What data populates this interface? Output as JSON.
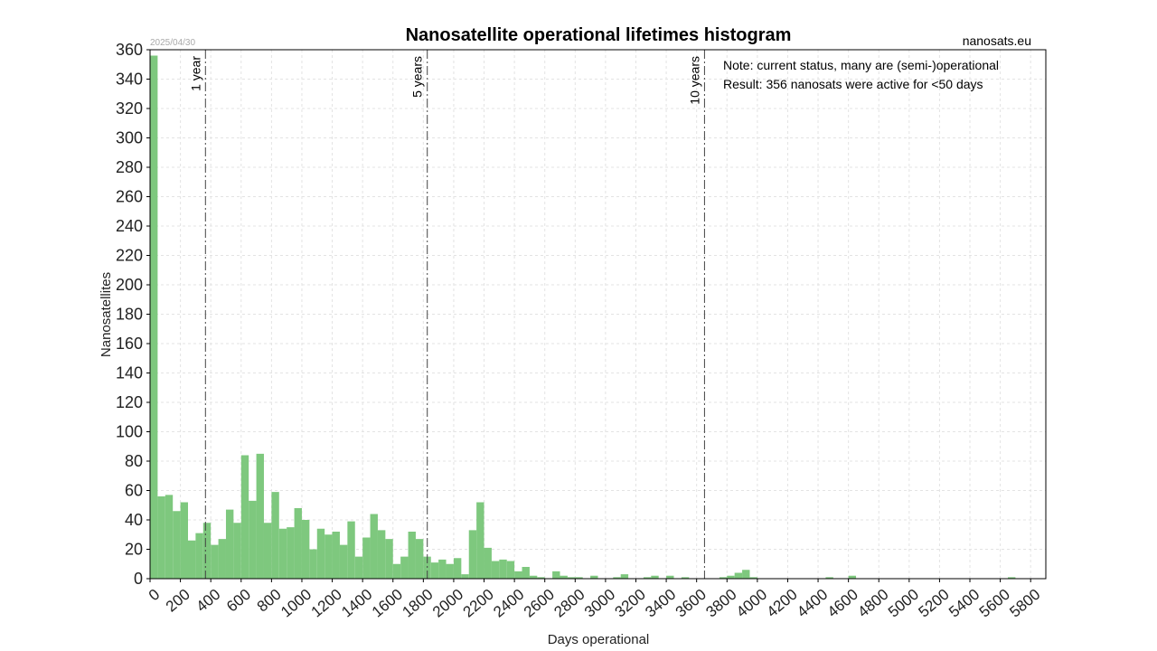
{
  "chart_data": {
    "type": "bar",
    "title": "Nanosatellite operational lifetimes histogram",
    "date_label": "2025/04/30",
    "source_label": "nanosats.eu",
    "xlabel": "Days operational",
    "ylabel": "Nanosatellites",
    "xlim": [
      0,
      5900
    ],
    "ylim": [
      0,
      360
    ],
    "bin_width": 50,
    "bar_color": "#7ec87e",
    "grid": true,
    "x_ticks": [
      0,
      200,
      400,
      600,
      800,
      1000,
      1200,
      1400,
      1600,
      1800,
      2000,
      2200,
      2400,
      2600,
      2800,
      3000,
      3200,
      3400,
      3600,
      3800,
      4000,
      4200,
      4400,
      4600,
      4800,
      5000,
      5200,
      5400,
      5600,
      5800
    ],
    "y_ticks": [
      0,
      20,
      40,
      60,
      80,
      100,
      120,
      140,
      160,
      180,
      200,
      220,
      240,
      260,
      280,
      300,
      320,
      340,
      360
    ],
    "bins": [
      {
        "x": 0,
        "count": 356
      },
      {
        "x": 50,
        "count": 56
      },
      {
        "x": 100,
        "count": 57
      },
      {
        "x": 150,
        "count": 46
      },
      {
        "x": 200,
        "count": 52
      },
      {
        "x": 250,
        "count": 26
      },
      {
        "x": 300,
        "count": 31
      },
      {
        "x": 350,
        "count": 38
      },
      {
        "x": 400,
        "count": 23
      },
      {
        "x": 450,
        "count": 27
      },
      {
        "x": 500,
        "count": 47
      },
      {
        "x": 550,
        "count": 38
      },
      {
        "x": 600,
        "count": 84
      },
      {
        "x": 650,
        "count": 53
      },
      {
        "x": 700,
        "count": 85
      },
      {
        "x": 750,
        "count": 38
      },
      {
        "x": 800,
        "count": 59
      },
      {
        "x": 850,
        "count": 34
      },
      {
        "x": 900,
        "count": 35
      },
      {
        "x": 950,
        "count": 48
      },
      {
        "x": 1000,
        "count": 40
      },
      {
        "x": 1050,
        "count": 20
      },
      {
        "x": 1100,
        "count": 34
      },
      {
        "x": 1150,
        "count": 30
      },
      {
        "x": 1200,
        "count": 32
      },
      {
        "x": 1250,
        "count": 23
      },
      {
        "x": 1300,
        "count": 39
      },
      {
        "x": 1350,
        "count": 15
      },
      {
        "x": 1400,
        "count": 28
      },
      {
        "x": 1450,
        "count": 44
      },
      {
        "x": 1500,
        "count": 33
      },
      {
        "x": 1550,
        "count": 27
      },
      {
        "x": 1600,
        "count": 10
      },
      {
        "x": 1650,
        "count": 15
      },
      {
        "x": 1700,
        "count": 32
      },
      {
        "x": 1750,
        "count": 27
      },
      {
        "x": 1800,
        "count": 15
      },
      {
        "x": 1850,
        "count": 11
      },
      {
        "x": 1900,
        "count": 13
      },
      {
        "x": 1950,
        "count": 10
      },
      {
        "x": 2000,
        "count": 14
      },
      {
        "x": 2050,
        "count": 3
      },
      {
        "x": 2100,
        "count": 33
      },
      {
        "x": 2150,
        "count": 52
      },
      {
        "x": 2200,
        "count": 21
      },
      {
        "x": 2250,
        "count": 12
      },
      {
        "x": 2300,
        "count": 13
      },
      {
        "x": 2350,
        "count": 12
      },
      {
        "x": 2400,
        "count": 5
      },
      {
        "x": 2450,
        "count": 8
      },
      {
        "x": 2500,
        "count": 2
      },
      {
        "x": 2550,
        "count": 1
      },
      {
        "x": 2650,
        "count": 5
      },
      {
        "x": 2700,
        "count": 2
      },
      {
        "x": 2750,
        "count": 1
      },
      {
        "x": 2800,
        "count": 1
      },
      {
        "x": 2900,
        "count": 2
      },
      {
        "x": 3050,
        "count": 1
      },
      {
        "x": 3100,
        "count": 3
      },
      {
        "x": 3250,
        "count": 1
      },
      {
        "x": 3300,
        "count": 2
      },
      {
        "x": 3400,
        "count": 2
      },
      {
        "x": 3500,
        "count": 1
      },
      {
        "x": 3750,
        "count": 1
      },
      {
        "x": 3800,
        "count": 2
      },
      {
        "x": 3850,
        "count": 4
      },
      {
        "x": 3900,
        "count": 6
      },
      {
        "x": 3950,
        "count": 1
      },
      {
        "x": 4450,
        "count": 1
      },
      {
        "x": 4600,
        "count": 2
      },
      {
        "x": 5650,
        "count": 1
      }
    ],
    "reference_lines": [
      {
        "x": 365,
        "label": "1 year"
      },
      {
        "x": 1826,
        "label": "5 years"
      },
      {
        "x": 3652,
        "label": "10 years"
      }
    ],
    "annotations": [
      "Note: current status, many are (semi-)operational",
      "Result: 356 nanosats were active for <50 days"
    ]
  }
}
